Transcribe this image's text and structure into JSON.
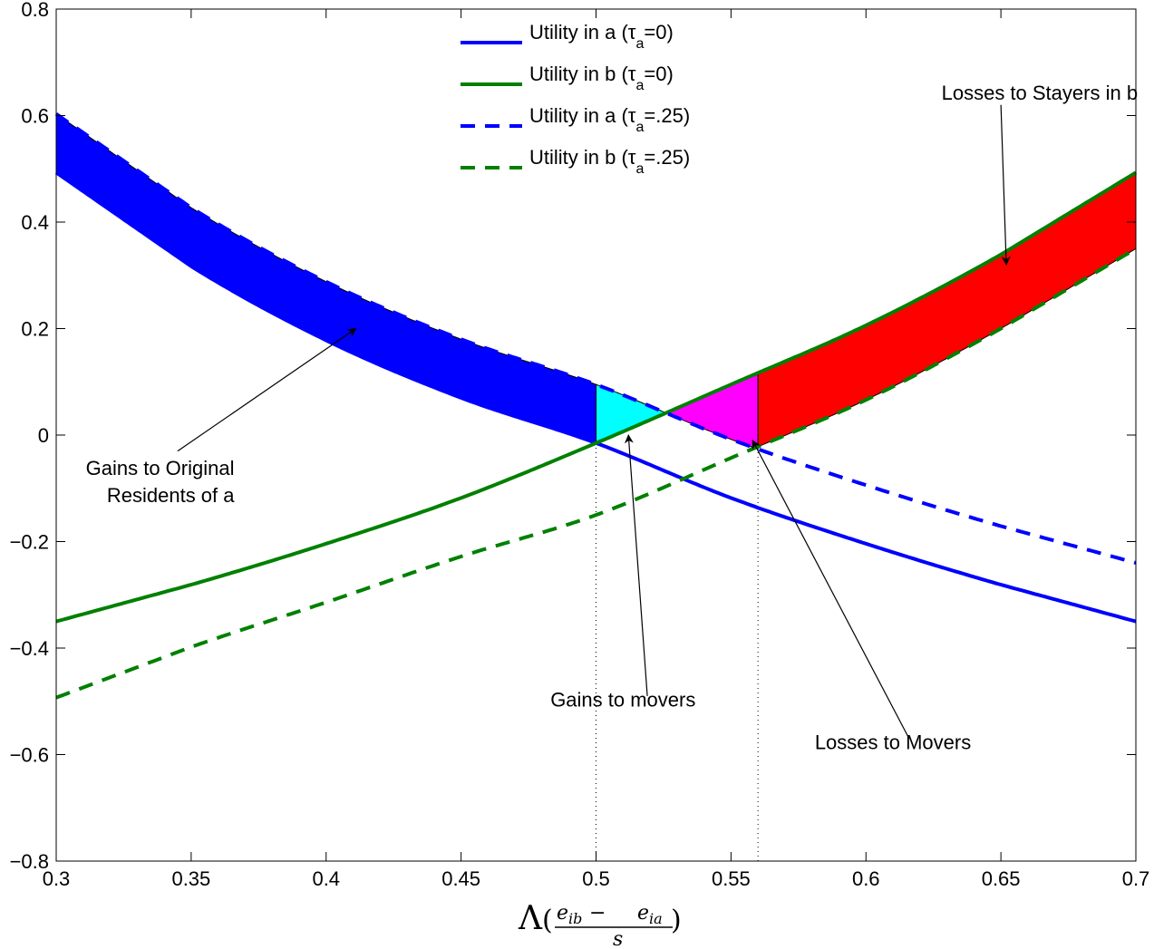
{
  "chart_data": {
    "type": "line",
    "xlabel": {
      "main": "Λ",
      "open_paren": "(",
      "close_paren": ")",
      "numerator_1": "e",
      "numerator_1_sub": "ib",
      "minus": "−",
      "numerator_2": "e",
      "numerator_2_sub": "ia",
      "denominator": "s"
    },
    "xlim": [
      0.3,
      0.7
    ],
    "ylim": [
      -0.8,
      0.8
    ],
    "xticks": [
      0.3,
      0.35,
      0.4,
      0.45,
      0.5,
      0.55,
      0.6,
      0.65,
      0.7
    ],
    "xtick_labels": [
      "0.3",
      "0.35",
      "0.4",
      "0.45",
      "0.5",
      "0.55",
      "0.6",
      "0.65",
      "0.7"
    ],
    "yticks": [
      -0.8,
      -0.6,
      -0.4,
      -0.2,
      0,
      0.2,
      0.4,
      0.6,
      0.8
    ],
    "ytick_labels": [
      "−0.8",
      "−0.6",
      "−0.4",
      "−0.2",
      "0",
      "0.2",
      "0.4",
      "0.6",
      "0.8"
    ],
    "legend_position": "top-center",
    "series": [
      {
        "name": "Utility in a (τa=0)",
        "name_main": "Utility in a (τ",
        "name_sub": "a",
        "name_end": "=0)",
        "color": "#0000ff",
        "dash": "solid",
        "x": [
          0.3,
          0.35,
          0.4,
          0.45,
          0.5,
          0.55,
          0.6,
          0.65,
          0.7
        ],
        "y": [
          0.493,
          0.317,
          0.178,
          0.07,
          -0.015,
          -0.118,
          -0.204,
          -0.281,
          -0.35
        ]
      },
      {
        "name": "Utility in b (τa=0)",
        "name_main": "Utility in b (τ",
        "name_sub": "a",
        "name_end": "=0)",
        "color": "#008000",
        "dash": "solid",
        "x": [
          0.3,
          0.35,
          0.4,
          0.45,
          0.5,
          0.55,
          0.6,
          0.65,
          0.7
        ],
        "y": [
          -0.35,
          -0.281,
          -0.204,
          -0.118,
          -0.015,
          0.095,
          0.206,
          0.339,
          0.493
        ]
      },
      {
        "name": "Utility in a (τa=.25)",
        "name_main": "Utility in a (τ",
        "name_sub": "a",
        "name_end": "=.25)",
        "color": "#0000ff",
        "dash": "dashed",
        "x": [
          0.3,
          0.35,
          0.4,
          0.45,
          0.5,
          0.55,
          0.6,
          0.65,
          0.7
        ],
        "y": [
          0.603,
          0.427,
          0.288,
          0.18,
          0.095,
          -0.008,
          -0.094,
          -0.171,
          -0.24
        ]
      },
      {
        "name": "Utility in b (τa=.25)",
        "name_main": "Utility in b (τ",
        "name_sub": "a",
        "name_end": "=.25)",
        "color": "#008000",
        "dash": "dashed",
        "x": [
          0.3,
          0.35,
          0.4,
          0.45,
          0.5,
          0.55,
          0.6,
          0.65,
          0.7
        ],
        "y": [
          -0.493,
          -0.398,
          -0.314,
          -0.228,
          -0.15,
          -0.043,
          0.066,
          0.2,
          0.35
        ]
      }
    ],
    "reference_lines": [
      0.5,
      0.56
    ],
    "shaded_regions": [
      {
        "name": "gains-original-residents",
        "color": "#0000ff",
        "x_from": 0.3,
        "x_to": 0.5,
        "upper_series": 2,
        "lower_series": 0
      },
      {
        "name": "gains-movers",
        "color": "#00ffff",
        "x_from": 0.5,
        "x_to": 0.56,
        "upper_series": 2,
        "lower_series": 1
      },
      {
        "name": "losses-movers",
        "color": "#ff00ff",
        "x_from": 0.5,
        "x_to": 0.56,
        "upper_series": 1,
        "lower_series": 2
      },
      {
        "name": "losses-stayers-b",
        "color": "#ff0000",
        "x_from": 0.56,
        "x_to": 0.7,
        "upper_series": 1,
        "lower_series": 3
      }
    ],
    "annotations": [
      {
        "name": "annot-gains-original-residents",
        "lines": [
          "Gains to Original",
          "Residents of a"
        ],
        "text_x": 0.366,
        "text_y": -0.075,
        "anchor": "end",
        "arrow_from": [
          0.345,
          -0.03
        ],
        "arrow_to": [
          0.411,
          0.2
        ]
      },
      {
        "name": "annot-gains-movers",
        "lines": [
          "Gains to movers"
        ],
        "text_x": 0.51,
        "text_y": -0.51,
        "anchor": "middle",
        "arrow_from": [
          0.519,
          -0.49
        ],
        "arrow_to": [
          0.512,
          0.0
        ]
      },
      {
        "name": "annot-losses-movers",
        "lines": [
          "Losses to Movers"
        ],
        "text_x": 0.61,
        "text_y": -0.59,
        "anchor": "middle",
        "arrow_from": [
          0.616,
          -0.57
        ],
        "arrow_to": [
          0.558,
          -0.01
        ]
      },
      {
        "name": "annot-losses-stayers-b",
        "lines": [
          "Losses to Stayers in b"
        ],
        "text_x": 0.628,
        "text_y": 0.63,
        "anchor": "start",
        "arrow_from": [
          0.65,
          0.62
        ],
        "arrow_to": [
          0.652,
          0.32
        ]
      }
    ]
  }
}
